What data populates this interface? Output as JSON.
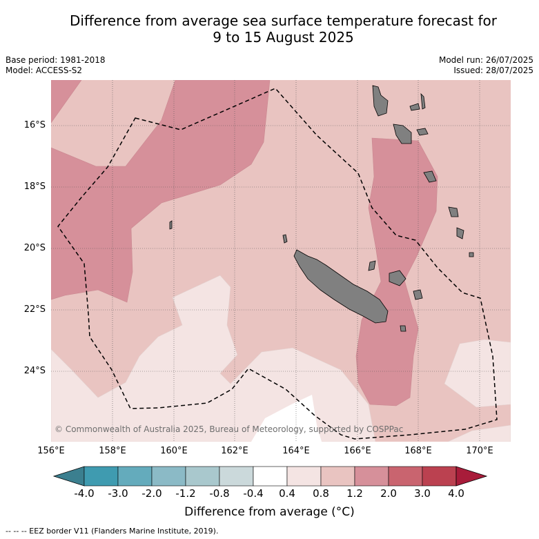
{
  "title_line1": "Difference from average sea surface temperature forecast for",
  "title_line2": "9 to 15 August 2025",
  "base_period": "Base period: 1981-2018",
  "model": "Model: ACCESS-S2",
  "model_run": "Model run: 26/07/2025",
  "issued": "Issued: 28/07/2025",
  "lat_labels": [
    "16°S",
    "18°S",
    "20°S",
    "22°S",
    "24°S"
  ],
  "lon_labels": [
    "156°E",
    "158°E",
    "160°E",
    "162°E",
    "164°E",
    "166°E",
    "168°E",
    "170°E"
  ],
  "credit": "© Commonwealth of Australia 2025, Bureau of Meteorology, supported by COSPPac",
  "colorbar": {
    "ticks": [
      "-4.0",
      "-3.0",
      "-2.0",
      "-1.2",
      "-0.8",
      "-0.4",
      "0.4",
      "0.8",
      "1.2",
      "2.0",
      "3.0",
      "4.0"
    ],
    "colors": [
      "#3f9bb0",
      "#64abbc",
      "#8bbac6",
      "#a9c8cd",
      "#cbd9db",
      "#ffffff",
      "#f4e4e3",
      "#e9c4c1",
      "#d6909a",
      "#c9646f",
      "#bb4150"
    ],
    "under_color": "#3b7f8f",
    "over_color": "#a81c3a",
    "label": "Difference from average (°C)"
  },
  "eez_note": "--  --  -- EEZ border V11 (Flanders Marine Institute, 2019).",
  "map": {
    "land_color": "#808080",
    "eez_line": "dashed-black"
  }
}
